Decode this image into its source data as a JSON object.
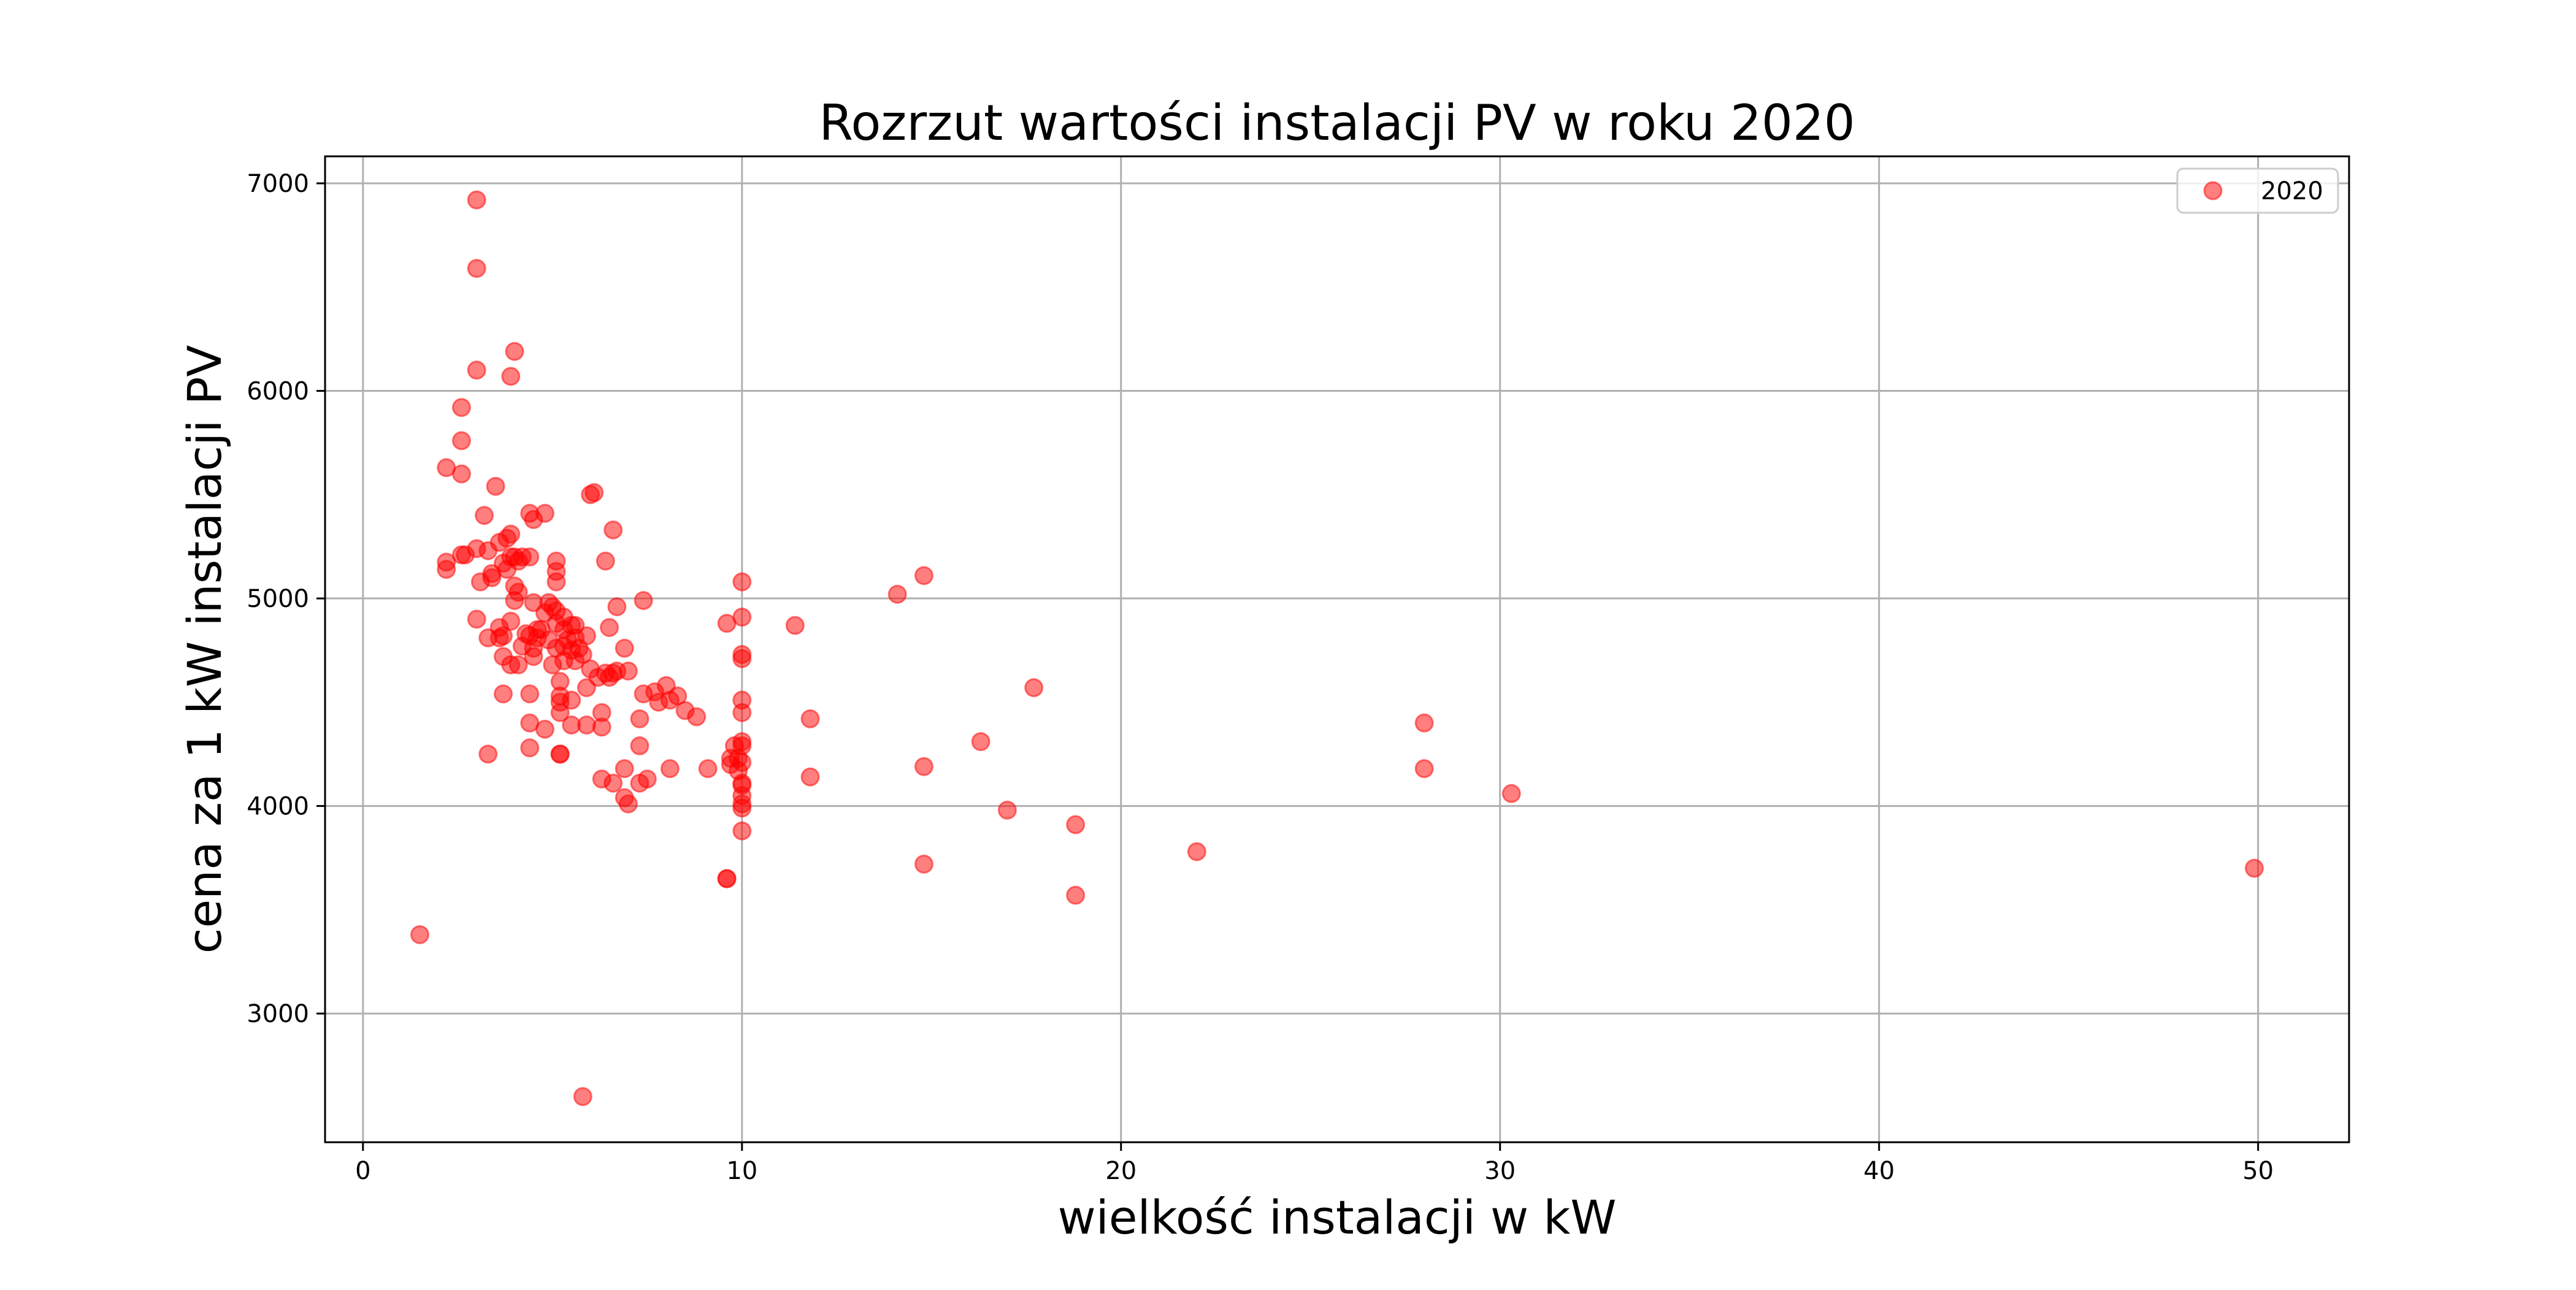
{
  "chart_data": {
    "type": "scatter",
    "title": "Rozrzut wartości instalacji PV w roku 2020",
    "xlabel": "wielkość instalacji w kW",
    "ylabel": "cena za 1 kW instalacji PV",
    "xlim": [
      -1,
      52.4
    ],
    "ylim": [
      2380,
      7130
    ],
    "xticks": [
      0,
      10,
      20,
      30,
      40,
      50
    ],
    "yticks": [
      3000,
      4000,
      5000,
      6000,
      7000
    ],
    "grid": true,
    "legend_position": "top-right",
    "point_color": "#ff0000",
    "point_opacity": 0.5,
    "series": [
      {
        "name": "2020",
        "color": "#ff0000",
        "points": [
          [
            1.5,
            3380
          ],
          [
            2.2,
            5140
          ],
          [
            2.2,
            5175
          ],
          [
            2.2,
            5630
          ],
          [
            2.6,
            5760
          ],
          [
            2.6,
            5920
          ],
          [
            2.6,
            5600
          ],
          [
            2.6,
            5210
          ],
          [
            2.7,
            5210
          ],
          [
            3.0,
            6920
          ],
          [
            3.0,
            6590
          ],
          [
            3.0,
            6100
          ],
          [
            3.0,
            5240
          ],
          [
            3.0,
            4900
          ],
          [
            3.1,
            5080
          ],
          [
            3.2,
            5400
          ],
          [
            3.3,
            4250
          ],
          [
            3.3,
            5230
          ],
          [
            3.3,
            4810
          ],
          [
            3.4,
            5120
          ],
          [
            3.4,
            5100
          ],
          [
            3.5,
            5540
          ],
          [
            3.6,
            5270
          ],
          [
            3.6,
            4860
          ],
          [
            3.6,
            4810
          ],
          [
            3.7,
            5170
          ],
          [
            3.7,
            4820
          ],
          [
            3.7,
            4720
          ],
          [
            3.7,
            4540
          ],
          [
            3.8,
            5290
          ],
          [
            3.8,
            5140
          ],
          [
            3.9,
            6070
          ],
          [
            3.9,
            5310
          ],
          [
            3.9,
            5200
          ],
          [
            3.9,
            4890
          ],
          [
            3.9,
            4680
          ],
          [
            4.0,
            6190
          ],
          [
            4.0,
            5200
          ],
          [
            4.0,
            5060
          ],
          [
            4.0,
            4990
          ],
          [
            4.1,
            5180
          ],
          [
            4.1,
            5030
          ],
          [
            4.1,
            4680
          ],
          [
            4.2,
            5200
          ],
          [
            4.2,
            4770
          ],
          [
            4.3,
            4830
          ],
          [
            4.4,
            5410
          ],
          [
            4.4,
            5200
          ],
          [
            4.4,
            4820
          ],
          [
            4.4,
            4540
          ],
          [
            4.4,
            4400
          ],
          [
            4.4,
            4280
          ],
          [
            4.5,
            5380
          ],
          [
            4.5,
            4980
          ],
          [
            4.5,
            4760
          ],
          [
            4.5,
            4720
          ],
          [
            4.6,
            4850
          ],
          [
            4.6,
            4810
          ],
          [
            4.7,
            4850
          ],
          [
            4.8,
            5410
          ],
          [
            4.8,
            4930
          ],
          [
            4.8,
            4370
          ],
          [
            4.9,
            4980
          ],
          [
            4.9,
            4800
          ],
          [
            5.0,
            4960
          ],
          [
            5.0,
            4680
          ],
          [
            5.1,
            5180
          ],
          [
            5.1,
            5130
          ],
          [
            5.1,
            5080
          ],
          [
            5.1,
            4940
          ],
          [
            5.1,
            4880
          ],
          [
            5.1,
            4760
          ],
          [
            5.2,
            4600
          ],
          [
            5.2,
            4530
          ],
          [
            5.2,
            4500
          ],
          [
            5.2,
            4450
          ],
          [
            5.2,
            4250
          ],
          [
            5.2,
            4250
          ],
          [
            5.3,
            4910
          ],
          [
            5.3,
            4850
          ],
          [
            5.3,
            4770
          ],
          [
            5.3,
            4700
          ],
          [
            5.4,
            4800
          ],
          [
            5.5,
            4870
          ],
          [
            5.5,
            4750
          ],
          [
            5.5,
            4510
          ],
          [
            5.5,
            4390
          ],
          [
            5.6,
            4870
          ],
          [
            5.6,
            4810
          ],
          [
            5.6,
            4700
          ],
          [
            5.7,
            4760
          ],
          [
            5.8,
            4730
          ],
          [
            5.8,
            2600
          ],
          [
            5.9,
            4820
          ],
          [
            5.9,
            4570
          ],
          [
            5.9,
            4390
          ],
          [
            6.0,
            5500
          ],
          [
            6.0,
            4660
          ],
          [
            6.1,
            5510
          ],
          [
            6.2,
            4620
          ],
          [
            6.3,
            4450
          ],
          [
            6.3,
            4380
          ],
          [
            6.3,
            4130
          ],
          [
            6.4,
            5180
          ],
          [
            6.4,
            4640
          ],
          [
            6.5,
            4860
          ],
          [
            6.5,
            4620
          ],
          [
            6.6,
            5330
          ],
          [
            6.6,
            4640
          ],
          [
            6.6,
            4110
          ],
          [
            6.7,
            4960
          ],
          [
            6.7,
            4650
          ],
          [
            6.9,
            4760
          ],
          [
            6.9,
            4180
          ],
          [
            6.9,
            4040
          ],
          [
            7.0,
            4650
          ],
          [
            7.0,
            4010
          ],
          [
            7.3,
            4290
          ],
          [
            7.3,
            4420
          ],
          [
            7.3,
            4110
          ],
          [
            7.4,
            4990
          ],
          [
            7.4,
            4540
          ],
          [
            7.5,
            4130
          ],
          [
            7.7,
            4550
          ],
          [
            7.8,
            4500
          ],
          [
            8.0,
            4580
          ],
          [
            8.1,
            4510
          ],
          [
            8.1,
            4180
          ],
          [
            8.3,
            4530
          ],
          [
            8.5,
            4460
          ],
          [
            8.8,
            4430
          ],
          [
            9.1,
            4180
          ],
          [
            9.6,
            4880
          ],
          [
            9.6,
            3650
          ],
          [
            9.6,
            3650
          ],
          [
            9.7,
            4230
          ],
          [
            9.7,
            4200
          ],
          [
            9.8,
            4290
          ],
          [
            9.9,
            4230
          ],
          [
            9.9,
            4170
          ],
          [
            10.0,
            5080
          ],
          [
            10.0,
            4910
          ],
          [
            10.0,
            4730
          ],
          [
            10.0,
            4710
          ],
          [
            10.0,
            4510
          ],
          [
            10.0,
            4450
          ],
          [
            10.0,
            4310
          ],
          [
            10.0,
            4290
          ],
          [
            10.0,
            4210
          ],
          [
            10.0,
            4110
          ],
          [
            10.0,
            4100
          ],
          [
            10.0,
            4050
          ],
          [
            10.0,
            4010
          ],
          [
            10.0,
            3990
          ],
          [
            10.0,
            3880
          ],
          [
            11.4,
            4870
          ],
          [
            11.8,
            4420
          ],
          [
            11.8,
            4140
          ],
          [
            14.1,
            5020
          ],
          [
            14.8,
            5110
          ],
          [
            14.8,
            4190
          ],
          [
            14.8,
            3720
          ],
          [
            16.3,
            4310
          ],
          [
            17.0,
            3980
          ],
          [
            17.7,
            4570
          ],
          [
            18.8,
            3910
          ],
          [
            18.8,
            3570
          ],
          [
            22.0,
            3780
          ],
          [
            28.0,
            4400
          ],
          [
            28.0,
            4180
          ],
          [
            30.3,
            4060
          ],
          [
            49.9,
            3700
          ]
        ]
      }
    ]
  }
}
